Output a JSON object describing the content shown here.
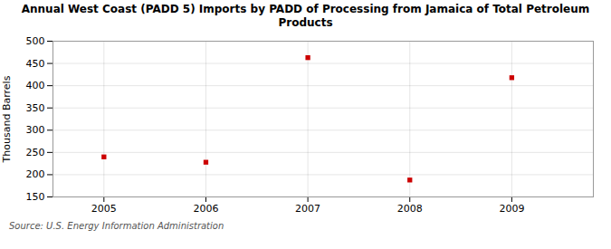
{
  "chart_data": {
    "type": "scatter",
    "title": "Annual West Coast (PADD 5) Imports by PADD of Processing from Jamaica of Total Petroleum\nProducts",
    "ylabel": "Thousand Barrels",
    "source": "Source: U.S. Energy Information Administration",
    "x": [
      2005,
      2006,
      2007,
      2008,
      2009
    ],
    "values": [
      240,
      228,
      463,
      188,
      418
    ],
    "color": "#cc0000",
    "marker": "square",
    "xlim": [
      2004.5,
      2009.8
    ],
    "xticks": [
      2005,
      2006,
      2007,
      2008,
      2009
    ],
    "ylim": [
      150,
      500
    ],
    "yticks": [
      150,
      200,
      250,
      300,
      350,
      400,
      450,
      500
    ],
    "grid": true
  }
}
